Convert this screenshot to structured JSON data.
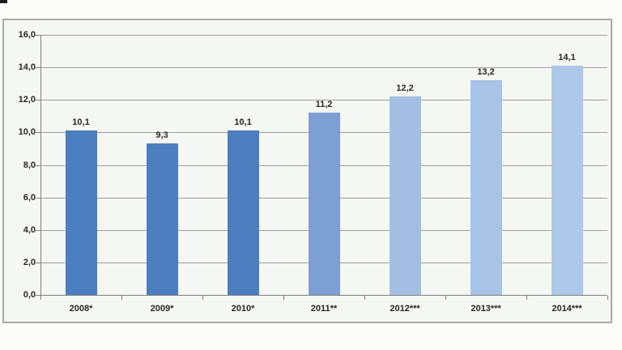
{
  "chart_data": {
    "type": "bar",
    "title": "",
    "xlabel": "",
    "ylabel": "",
    "categories": [
      "2008*",
      "2009*",
      "2010*",
      "2011**",
      "2012***",
      "2013***",
      "2014***"
    ],
    "values": [
      10.1,
      9.3,
      10.1,
      11.2,
      12.2,
      13.2,
      14.1
    ],
    "value_labels": [
      "10,1",
      "9,3",
      "10,1",
      "11,2",
      "12,2",
      "13,2",
      "14,1"
    ],
    "bar_colors": [
      "#4d7ebf",
      "#4d7ebf",
      "#4d7ebf",
      "#7e9fd4",
      "#a2bfe3",
      "#a7c3e5",
      "#adc8e8"
    ],
    "ylim": [
      0,
      16
    ],
    "y_tick_values": [
      0,
      2,
      4,
      6,
      8,
      10,
      12,
      14,
      16
    ],
    "y_tick_labels": [
      "0,0",
      "2,0",
      "4,0",
      "6,0",
      "8,0",
      "10,0",
      "12,0",
      "14,0",
      "16,0"
    ],
    "grid": true,
    "legend": false,
    "styles": {
      "canvas_bg": "#fcfdfa",
      "plot_bg": "#f5f7f2",
      "grid_color": "#9e9e9e",
      "axis_color": "#7f7f7f",
      "frame_border": "#a9a9a9",
      "label_color": "#262626"
    }
  }
}
